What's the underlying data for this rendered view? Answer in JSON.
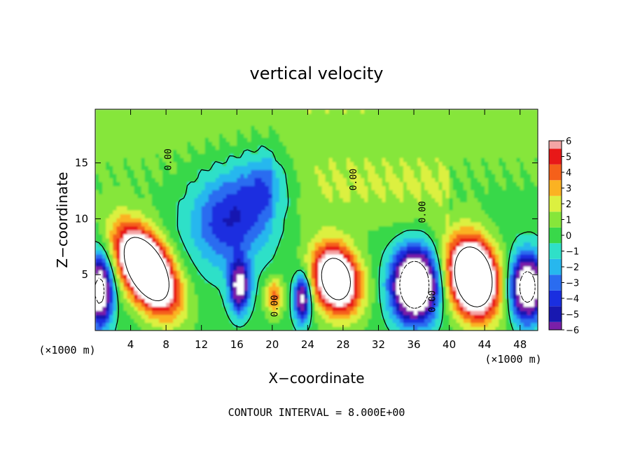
{
  "chart_data": {
    "type": "heatmap",
    "title": "vertical velocity",
    "xlabel": "X−coordinate",
    "ylabel": "Z−coordinate",
    "x_unit_left": "(×1000 m)",
    "x_unit_right": "(×1000 m)",
    "footer": "CONTOUR INTERVAL = 8.000E+00",
    "xlim": [
      0,
      50
    ],
    "ylim": [
      0,
      19.8
    ],
    "x_ticks": [
      4,
      8,
      12,
      16,
      20,
      24,
      28,
      32,
      36,
      40,
      44,
      48
    ],
    "x_tick_labels": [
      "4",
      "8",
      "12",
      "16",
      "20",
      "24",
      "28",
      "32",
      "36",
      "40",
      "44",
      "48"
    ],
    "y_ticks": [
      5,
      10,
      15
    ],
    "y_tick_labels": [
      "5",
      "10",
      "15"
    ],
    "contour_labels": [
      {
        "text": "0.00",
        "x": 8.6,
        "z": 15.3
      },
      {
        "text": "0.00",
        "x": 29.5,
        "z": 13.5
      },
      {
        "text": "0.00",
        "x": 37.3,
        "z": 10.6
      },
      {
        "text": "0.00",
        "x": 20.6,
        "z": 2.2
      },
      {
        "text": "0.00",
        "x": 38.4,
        "z": 2.6
      }
    ],
    "colorbar": {
      "levels": [
        -6,
        -5,
        -4,
        -3,
        -2,
        -1,
        0,
        1,
        2,
        3,
        4,
        5,
        6
      ],
      "labels": [
        "−6",
        "−5",
        "−4",
        "−3",
        "−2",
        "−1",
        "0",
        "1",
        "2",
        "3",
        "4",
        "5",
        "6"
      ],
      "colors": [
        "#7a1fa8",
        "#1818b0",
        "#1a2fe0",
        "#2a6cf0",
        "#27b7ee",
        "#2fe0c8",
        "#39d84a",
        "#86e63a",
        "#dcf040",
        "#fbb222",
        "#f5601a",
        "#e81818",
        "#f4a5a5"
      ]
    },
    "features": [
      {
        "kind": "updraft",
        "x": 5.8,
        "z": 5.5,
        "peak": 14,
        "rx": 2.8,
        "rz": 3.6,
        "tilt": 0.45
      },
      {
        "kind": "updraft",
        "x": 27.2,
        "z": 4.6,
        "peak": 11,
        "rx": 2.6,
        "rz": 3.0,
        "tilt": 0.15
      },
      {
        "kind": "updraft",
        "x": 42.7,
        "z": 4.8,
        "peak": 14,
        "rx": 2.7,
        "rz": 3.4,
        "tilt": 0.15
      },
      {
        "kind": "updraft",
        "x": 20.2,
        "z": 3.1,
        "peak": 4.2,
        "rx": 1.0,
        "rz": 1.6,
        "tilt": 0.0
      },
      {
        "kind": "downdraft",
        "x": 16.3,
        "z": 4.0,
        "peak": -8,
        "rx": 1.1,
        "rz": 2.2,
        "tilt": 0.0
      },
      {
        "kind": "downdraft",
        "x": 23.4,
        "z": 2.9,
        "peak": -8,
        "rx": 0.9,
        "rz": 2.0,
        "tilt": 0.0
      },
      {
        "kind": "downdraft",
        "x": 36.1,
        "z": 4.1,
        "peak": -14,
        "rx": 2.4,
        "rz": 3.0,
        "tilt": 0.0
      },
      {
        "kind": "downdraft",
        "x": 48.8,
        "z": 3.9,
        "peak": -11,
        "rx": 1.8,
        "rz": 2.8,
        "tilt": 0.0
      },
      {
        "kind": "downdraft",
        "x": 0.5,
        "z": 3.6,
        "peak": -10,
        "rx": 1.4,
        "rz": 3.0,
        "tilt": 0.0
      },
      {
        "kind": "downdraft",
        "x": 15.0,
        "z": 10.0,
        "peak": -4.5,
        "rx": 4.2,
        "rz": 4.2,
        "tilt": 0.0
      },
      {
        "kind": "downdraft",
        "x": 19.5,
        "z": 13.0,
        "peak": -3.2,
        "rx": 3.2,
        "rz": 3.2,
        "tilt": 0.0
      }
    ]
  }
}
